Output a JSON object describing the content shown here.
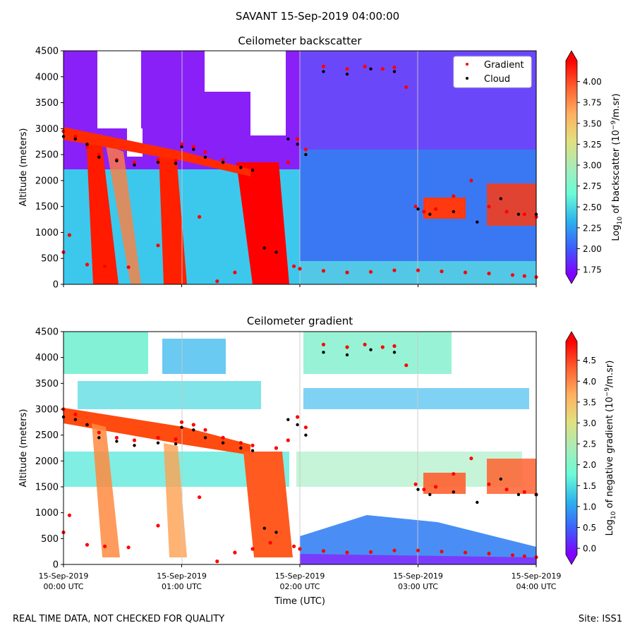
{
  "figure": {
    "suptitle": "SAVANT 15-Sep-2019 04:00:00",
    "footer_left": "REAL TIME DATA, NOT CHECKED FOR QUALITY",
    "footer_right": "Site: ISS1"
  },
  "colors": {
    "rainbow": [
      "#8000ff",
      "#3c60fb",
      "#2cb4ec",
      "#6afcd7",
      "#a8ecb8",
      "#e2e07e",
      "#ffb060",
      "#ff6030",
      "#ff0000"
    ],
    "gradient_marker": "#ff0000",
    "cloud_marker": "#000000"
  },
  "chart_data": [
    {
      "type": "heatmap",
      "title": "Ceilometer backscatter",
      "xlabel": "",
      "ylabel": "Altitude (meters)",
      "x_tick_labels": [],
      "x_range_hours": [
        0,
        4
      ],
      "ylim": [
        0,
        4500
      ],
      "y_ticks": [
        0,
        500,
        1000,
        1500,
        2000,
        2500,
        3000,
        3500,
        4000,
        4500
      ],
      "colorbar": {
        "label_parts": [
          "Log",
          "10",
          " of backscatter (10",
          "−9",
          "/m.sr)"
        ],
        "range": [
          1.7,
          4.25
        ],
        "ticks": [
          "1.75",
          "2.00",
          "2.25",
          "2.50",
          "2.75",
          "3.00",
          "3.25",
          "3.50",
          "3.75",
          "4.00"
        ],
        "tick_values": [
          1.75,
          2.0,
          2.25,
          2.5,
          2.75,
          3.0,
          3.25,
          3.5,
          3.75,
          4.0
        ]
      },
      "legend": {
        "position": "top-right",
        "entries": [
          "Gradient",
          "Cloud"
        ]
      },
      "series": [
        {
          "name": "Gradient",
          "hours": [
            0.0,
            0.1,
            0.2,
            0.3,
            0.45,
            0.6,
            0.8,
            0.95,
            1.0,
            1.1,
            1.2,
            1.35,
            1.5,
            1.6,
            1.8,
            1.9,
            1.98,
            2.05,
            2.2,
            2.4,
            2.55,
            2.7,
            2.8,
            2.9,
            2.98,
            3.05,
            3.15,
            3.3,
            3.45,
            3.6,
            3.75,
            3.9,
            4.0
          ],
          "altitude_m": [
            2950,
            2850,
            2650,
            2500,
            2400,
            2350,
            2400,
            2380,
            2700,
            2650,
            2550,
            2400,
            2300,
            2260,
            2200,
            2350,
            2800,
            2600,
            4200,
            4150,
            4200,
            4150,
            4180,
            3800,
            1500,
            1400,
            1450,
            1700,
            2000,
            1500,
            1400,
            1350,
            1300
          ]
        },
        {
          "name": "Gradient",
          "hours": [
            0.0,
            0.05,
            0.2,
            0.35,
            0.55,
            0.8,
            1.15,
            1.3,
            1.45,
            1.6,
            1.75,
            1.95,
            2.0,
            2.2,
            2.4,
            2.6,
            2.8,
            3.0,
            3.2,
            3.4,
            3.6,
            3.8,
            3.9,
            4.0
          ],
          "altitude_m": [
            620,
            950,
            380,
            350,
            330,
            750,
            1300,
            60,
            230,
            300,
            420,
            350,
            300,
            260,
            230,
            240,
            270,
            270,
            250,
            230,
            210,
            180,
            160,
            140
          ]
        },
        {
          "name": "Cloud",
          "hours": [
            0.0,
            0.1,
            0.2,
            0.3,
            0.45,
            0.6,
            0.8,
            0.95,
            1.0,
            1.1,
            1.2,
            1.35,
            1.5,
            1.6,
            1.7,
            1.8,
            1.9,
            1.98,
            2.05,
            2.2,
            2.4,
            2.6,
            2.8,
            3.0,
            3.1,
            3.3,
            3.5,
            3.7,
            3.85,
            4.0
          ],
          "altitude_m": [
            2850,
            2800,
            2700,
            2450,
            2380,
            2300,
            2350,
            2330,
            2650,
            2600,
            2450,
            2350,
            2250,
            2200,
            700,
            620,
            2800,
            2700,
            2500,
            4100,
            4050,
            4150,
            4100,
            1450,
            1350,
            1400,
            1200,
            1650,
            1350,
            1350
          ]
        }
      ]
    },
    {
      "type": "heatmap",
      "title": "Ceilometer gradient",
      "xlabel": "Time (UTC)",
      "ylabel": "Altitude (meters)",
      "x_range_hours": [
        0,
        4
      ],
      "x_tick_hours": [
        0,
        1,
        2,
        3,
        4
      ],
      "x_tick_labels": [
        [
          "15-Sep-2019",
          "00:00 UTC"
        ],
        [
          "15-Sep-2019",
          "01:00 UTC"
        ],
        [
          "15-Sep-2019",
          "02:00 UTC"
        ],
        [
          "15-Sep-2019",
          "03:00 UTC"
        ],
        [
          "15-Sep-2019",
          "04:00 UTC"
        ]
      ],
      "ylim": [
        0,
        4500
      ],
      "y_ticks": [
        0,
        500,
        1000,
        1500,
        2000,
        2500,
        3000,
        3500,
        4000,
        4500
      ],
      "colorbar": {
        "label_parts": [
          "Log",
          "10",
          " of negative gradient (10",
          "−9",
          "/m.sr)"
        ],
        "range": [
          -0.15,
          4.95
        ],
        "ticks": [
          "0.0",
          "0.5",
          "1.0",
          "1.5",
          "2.0",
          "2.5",
          "3.0",
          "3.5",
          "4.0",
          "4.5"
        ],
        "tick_values": [
          0.0,
          0.5,
          1.0,
          1.5,
          2.0,
          2.5,
          3.0,
          3.5,
          4.0,
          4.5
        ]
      },
      "series": [
        {
          "name": "Gradient",
          "hours": [
            0.0,
            0.1,
            0.2,
            0.3,
            0.45,
            0.6,
            0.8,
            0.95,
            1.0,
            1.1,
            1.2,
            1.35,
            1.5,
            1.6,
            1.8,
            1.9,
            1.98,
            2.05,
            2.2,
            2.4,
            2.55,
            2.7,
            2.8,
            2.9,
            2.98,
            3.05,
            3.15,
            3.3,
            3.45,
            3.6,
            3.75,
            3.9,
            4.0
          ],
          "altitude_m": [
            3000,
            2900,
            2700,
            2550,
            2450,
            2400,
            2450,
            2420,
            2750,
            2700,
            2600,
            2450,
            2350,
            2300,
            2250,
            2400,
            2850,
            2650,
            4250,
            4200,
            4250,
            4200,
            4220,
            3850,
            1550,
            1450,
            1500,
            1750,
            2050,
            1550,
            1450,
            1400,
            1350
          ]
        },
        {
          "name": "Gradient",
          "hours": [
            0.0,
            0.05,
            0.2,
            0.35,
            0.55,
            0.8,
            1.15,
            1.3,
            1.45,
            1.6,
            1.75,
            1.95,
            2.0,
            2.2,
            2.4,
            2.6,
            2.8,
            3.0,
            3.2,
            3.4,
            3.6,
            3.8,
            3.9,
            4.0
          ],
          "altitude_m": [
            620,
            950,
            380,
            350,
            330,
            750,
            1300,
            60,
            230,
            300,
            420,
            350,
            300,
            260,
            230,
            240,
            270,
            270,
            250,
            230,
            210,
            180,
            160,
            140
          ]
        },
        {
          "name": "Cloud",
          "hours": [
            0.0,
            0.1,
            0.2,
            0.3,
            0.45,
            0.6,
            0.8,
            0.95,
            1.0,
            1.1,
            1.2,
            1.35,
            1.5,
            1.6,
            1.7,
            1.8,
            1.9,
            1.98,
            2.05,
            2.2,
            2.4,
            2.6,
            2.8,
            3.0,
            3.1,
            3.3,
            3.5,
            3.7,
            3.85,
            4.0
          ],
          "altitude_m": [
            2850,
            2800,
            2700,
            2450,
            2380,
            2300,
            2350,
            2330,
            2650,
            2600,
            2450,
            2350,
            2250,
            2200,
            700,
            620,
            2800,
            2700,
            2500,
            4100,
            4050,
            4150,
            4100,
            1450,
            1350,
            1400,
            1200,
            1650,
            1350,
            1350
          ]
        }
      ]
    }
  ]
}
